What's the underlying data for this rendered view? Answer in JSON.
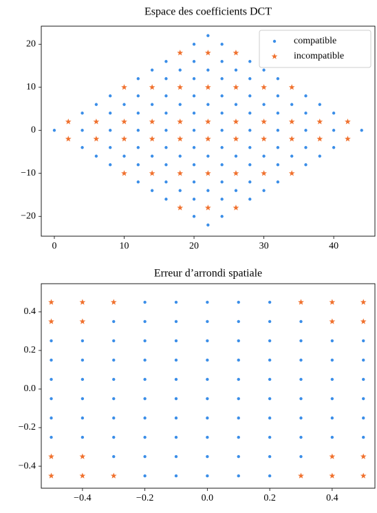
{
  "chart_data": [
    {
      "type": "scatter",
      "title": "Espace des coefficients DCT",
      "xlim": [
        -1.87,
        45.9
      ],
      "ylim": [
        -24.6,
        24.2
      ],
      "xticks": [
        0,
        10,
        20,
        30,
        40
      ],
      "yticks": [
        {
          "value": -20,
          "label": "−20"
        },
        {
          "value": -10,
          "label": "−10"
        },
        0,
        10,
        20
      ],
      "legend": "upper right",
      "series": [
        {
          "name": "compatible",
          "color": "#3b8ee8",
          "marker": "circle",
          "x": [
            0,
            4,
            4,
            4,
            6,
            6,
            8,
            8,
            8,
            8,
            8,
            10,
            10,
            12,
            12,
            12,
            12,
            12,
            12,
            12,
            14,
            14,
            14,
            14,
            16,
            16,
            16,
            16,
            16,
            16,
            16,
            16,
            16,
            18,
            18,
            18,
            18,
            20,
            20,
            20,
            20,
            20,
            20,
            20,
            20,
            20,
            20,
            20,
            22,
            22,
            22,
            22,
            22,
            22,
            24,
            24,
            24,
            24,
            24,
            24,
            24,
            24,
            24,
            24,
            24,
            26,
            26,
            26,
            26,
            28,
            28,
            28,
            28,
            28,
            28,
            28,
            28,
            28,
            30,
            30,
            30,
            30,
            32,
            32,
            32,
            32,
            32,
            32,
            32,
            34,
            34,
            36,
            36,
            36,
            36,
            36,
            38,
            38,
            40,
            40,
            40,
            44
          ],
          "y": [
            0,
            -4,
            0,
            4,
            -6,
            6,
            -8,
            -4,
            0,
            4,
            8,
            -6,
            6,
            -12,
            -8,
            -4,
            0,
            4,
            8,
            12,
            -14,
            -6,
            6,
            14,
            -16,
            -12,
            -8,
            -4,
            0,
            4,
            8,
            12,
            16,
            -14,
            -6,
            6,
            14,
            -20,
            -16,
            -12,
            -8,
            -4,
            0,
            4,
            8,
            12,
            16,
            20,
            -22,
            -14,
            -6,
            6,
            14,
            22,
            -20,
            -16,
            -12,
            -8,
            -4,
            0,
            4,
            8,
            12,
            16,
            20,
            -14,
            -6,
            6,
            14,
            -16,
            -12,
            -8,
            -4,
            0,
            4,
            8,
            12,
            16,
            -14,
            -6,
            6,
            14,
            -12,
            -8,
            -4,
            0,
            4,
            8,
            12,
            -6,
            6,
            -8,
            -4,
            0,
            4,
            8,
            -6,
            6,
            -4,
            0,
            4,
            0
          ]
        },
        {
          "name": "incompatible",
          "color": "#f0712e",
          "marker": "star",
          "x": [
            2,
            2,
            6,
            6,
            10,
            10,
            10,
            10,
            14,
            14,
            14,
            14,
            18,
            18,
            18,
            18,
            18,
            18,
            22,
            22,
            22,
            22,
            22,
            22,
            26,
            26,
            26,
            26,
            26,
            26,
            30,
            30,
            30,
            30,
            34,
            34,
            34,
            34,
            38,
            38,
            42,
            42
          ],
          "y": [
            -2,
            2,
            -2,
            2,
            -10,
            -2,
            2,
            10,
            -10,
            -2,
            2,
            10,
            -18,
            -10,
            -2,
            2,
            10,
            18,
            -18,
            -10,
            -2,
            2,
            10,
            18,
            -18,
            -10,
            -2,
            2,
            10,
            18,
            -10,
            -2,
            2,
            10,
            -10,
            -2,
            2,
            10,
            -2,
            2,
            -2,
            2
          ]
        }
      ]
    },
    {
      "type": "scatter",
      "title": "Erreur d’arrondi spatiale",
      "xlim": [
        -0.532,
        0.537
      ],
      "ylim": [
        -0.514,
        0.546
      ],
      "xticks": [
        {
          "value": -0.4,
          "label": "−0.4"
        },
        {
          "value": -0.2,
          "label": "−0.2"
        },
        {
          "value": 0,
          "label": "0.0"
        },
        0.2,
        0.4
      ],
      "yticks": [
        {
          "value": -0.4,
          "label": "−0.4"
        },
        {
          "value": -0.2,
          "label": "−0.2"
        },
        {
          "value": 0,
          "label": "0.0"
        },
        0.2,
        0.4
      ],
      "series": [
        {
          "color": "#3b8ee8",
          "marker": "circle",
          "x": [
            -0.2,
            -0.1,
            0,
            0.1,
            0.2,
            -0.3,
            -0.2,
            -0.1,
            0,
            0.1,
            0.2,
            0.3,
            -0.5,
            -0.4,
            -0.3,
            -0.2,
            -0.1,
            0,
            0.1,
            0.2,
            0.3,
            0.4,
            0.5,
            -0.5,
            -0.4,
            -0.3,
            -0.2,
            -0.1,
            0,
            0.1,
            0.2,
            0.3,
            0.4,
            0.5,
            -0.5,
            -0.4,
            -0.3,
            -0.2,
            -0.1,
            0,
            0.1,
            0.2,
            0.3,
            0.4,
            0.5,
            -0.5,
            -0.4,
            -0.3,
            -0.2,
            -0.1,
            0,
            0.1,
            0.2,
            0.3,
            0.4,
            0.5,
            -0.5,
            -0.4,
            -0.3,
            -0.2,
            -0.1,
            0,
            0.1,
            0.2,
            0.3,
            0.4,
            0.5,
            -0.5,
            -0.4,
            -0.3,
            -0.2,
            -0.1,
            0,
            0.1,
            0.2,
            0.3,
            0.4,
            0.5,
            -0.3,
            -0.2,
            -0.1,
            0,
            0.1,
            0.2,
            0.3,
            -0.2,
            -0.1,
            0,
            0.1,
            0.2
          ],
          "y": [
            -0.45,
            -0.45,
            -0.45,
            -0.45,
            -0.45,
            -0.35,
            -0.35,
            -0.35,
            -0.35,
            -0.35,
            -0.35,
            -0.35,
            -0.25,
            -0.25,
            -0.25,
            -0.25,
            -0.25,
            -0.25,
            -0.25,
            -0.25,
            -0.25,
            -0.25,
            -0.25,
            -0.15,
            -0.15,
            -0.15,
            -0.15,
            -0.15,
            -0.15,
            -0.15,
            -0.15,
            -0.15,
            -0.15,
            -0.15,
            -0.05,
            -0.05,
            -0.05,
            -0.05,
            -0.05,
            -0.05,
            -0.05,
            -0.05,
            -0.05,
            -0.05,
            -0.05,
            0.05,
            0.05,
            0.05,
            0.05,
            0.05,
            0.05,
            0.05,
            0.05,
            0.05,
            0.05,
            0.05,
            0.15,
            0.15,
            0.15,
            0.15,
            0.15,
            0.15,
            0.15,
            0.15,
            0.15,
            0.15,
            0.15,
            0.25,
            0.25,
            0.25,
            0.25,
            0.25,
            0.25,
            0.25,
            0.25,
            0.25,
            0.25,
            0.25,
            0.35,
            0.35,
            0.35,
            0.35,
            0.35,
            0.35,
            0.35,
            0.45,
            0.45,
            0.45,
            0.45,
            0.45
          ]
        },
        {
          "color": "#f0712e",
          "marker": "star",
          "x": [
            -0.5,
            -0.4,
            -0.3,
            0.3,
            0.4,
            0.5,
            -0.5,
            -0.4,
            0.4,
            0.5,
            -0.5,
            -0.4,
            0.4,
            0.5,
            -0.5,
            -0.4,
            -0.3,
            0.3,
            0.4,
            0.5
          ],
          "y": [
            -0.45,
            -0.45,
            -0.45,
            -0.45,
            -0.45,
            -0.45,
            -0.35,
            -0.35,
            -0.35,
            -0.35,
            0.35,
            0.35,
            0.35,
            0.35,
            0.45,
            0.45,
            0.45,
            0.45,
            0.45,
            0.45
          ]
        }
      ]
    }
  ]
}
